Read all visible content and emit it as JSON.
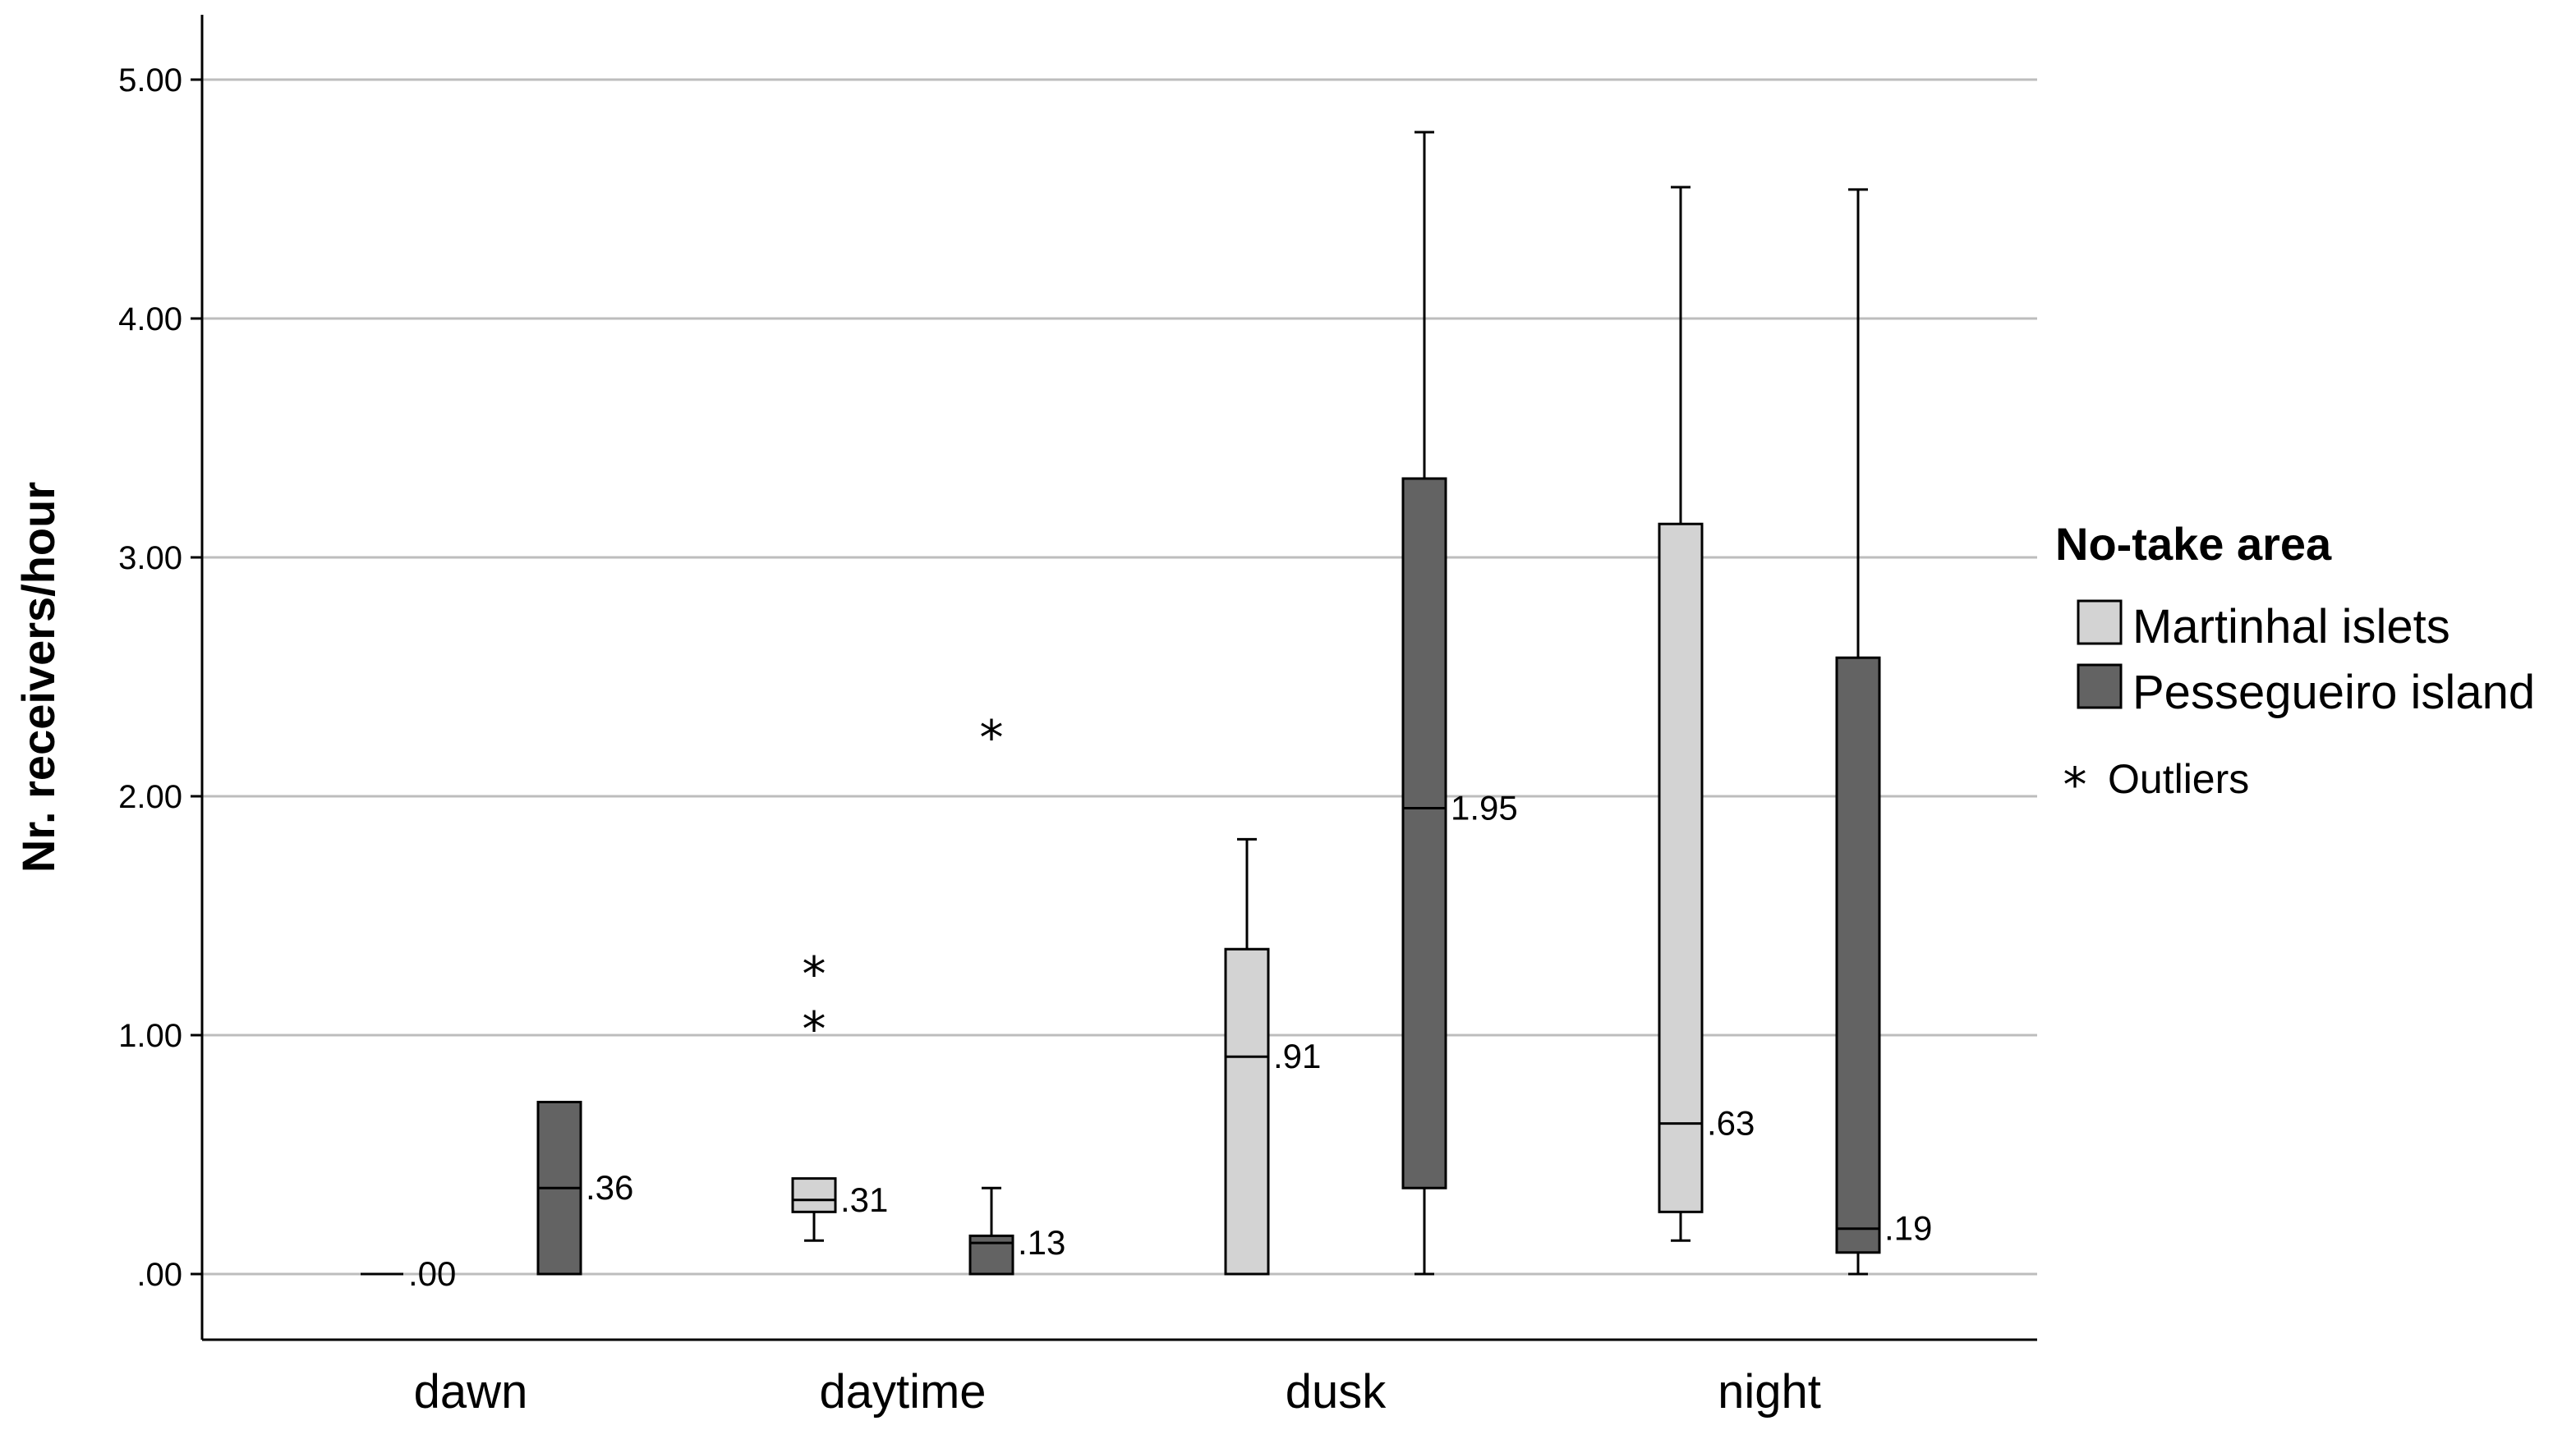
{
  "chart_data": {
    "type": "boxplot",
    "ylabel": "Nr. receivers/hour",
    "ylim": [
      0,
      5.5
    ],
    "yticks": [
      ".00",
      "1.00",
      "2.00",
      "3.00",
      "4.00",
      "5.00"
    ],
    "ytick_values": [
      0,
      1,
      2,
      3,
      4,
      5
    ],
    "grid": true,
    "legend_title": "No-take area",
    "legend_position": "right",
    "outlier_legend": "Outliers",
    "categories": [
      "dawn",
      "daytime",
      "dusk",
      "night"
    ],
    "series": [
      {
        "name": "Martinhal islets",
        "color": "#d3d3d3",
        "boxes": [
          {
            "category": "dawn",
            "min": 0,
            "q1": 0,
            "median": 0,
            "q3": 0,
            "max": 0,
            "median_label": ".00",
            "outliers": []
          },
          {
            "category": "daytime",
            "min": 0.14,
            "q1": 0.26,
            "median": 0.31,
            "q3": 0.4,
            "max": 0.4,
            "median_label": ".31",
            "outliers": [
              1.04,
              1.27
            ]
          },
          {
            "category": "dusk",
            "min": 0,
            "q1": 0,
            "median": 0.91,
            "q3": 1.36,
            "max": 1.82,
            "median_label": ".91",
            "outliers": []
          },
          {
            "category": "night",
            "min": 0.14,
            "q1": 0.26,
            "median": 0.63,
            "q3": 3.14,
            "max": 4.55,
            "median_label": ".63",
            "outliers": []
          }
        ]
      },
      {
        "name": "Pessegueiro island",
        "color": "#636363",
        "boxes": [
          {
            "category": "dawn",
            "min": 0,
            "q1": 0,
            "median": 0.36,
            "q3": 0.72,
            "max": 0.72,
            "median_label": ".36",
            "outliers": []
          },
          {
            "category": "daytime",
            "min": 0,
            "q1": 0,
            "median": 0.13,
            "q3": 0.16,
            "max": 0.36,
            "median_label": ".13",
            "outliers": [
              2.26
            ]
          },
          {
            "category": "dusk",
            "min": 0,
            "q1": 0.36,
            "median": 1.95,
            "q3": 3.33,
            "max": 4.78,
            "median_label": "1.95",
            "outliers": []
          },
          {
            "category": "night",
            "min": 0,
            "q1": 0.09,
            "median": 0.19,
            "q3": 2.58,
            "max": 4.54,
            "median_label": ".19",
            "outliers": []
          }
        ]
      }
    ]
  }
}
